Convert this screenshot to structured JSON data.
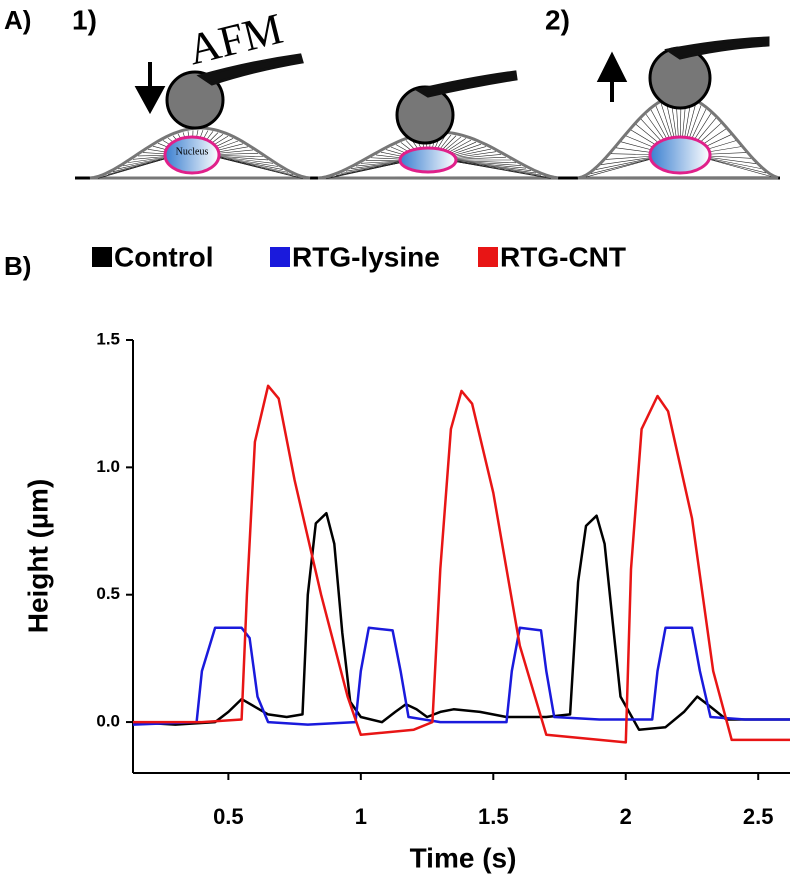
{
  "figure_a": {
    "label": "A)",
    "steps": [
      "1)",
      "2)"
    ],
    "probe_label": "AFM",
    "nucleus_label": "Nucleus"
  },
  "panel_b_label": "B)",
  "chart_data": {
    "type": "line",
    "xlabel": "Time (s)",
    "ylabel": "Height (µm)",
    "xlim": [
      0.14,
      2.62
    ],
    "ylim": [
      -0.2,
      1.5
    ],
    "xticks": [
      0.5,
      1,
      1.5,
      2,
      2.5
    ],
    "yticks": [
      {
        "value": 0,
        "label": "0.0"
      },
      0.5,
      {
        "value": 1,
        "label": "1.0"
      },
      1.5
    ],
    "grid": false,
    "legend": "top",
    "series": [
      {
        "name": "Control",
        "color": "#000000",
        "x": [
          0.14,
          0.3,
          0.45,
          0.5,
          0.55,
          0.6,
          0.65,
          0.72,
          0.78,
          0.8,
          0.83,
          0.87,
          0.9,
          0.93,
          0.96,
          1.0,
          1.08,
          1.13,
          1.17,
          1.21,
          1.25,
          1.3,
          1.35,
          1.45,
          1.55,
          1.7,
          1.79,
          1.82,
          1.85,
          1.89,
          1.92,
          1.95,
          1.98,
          2.05,
          2.15,
          2.22,
          2.27,
          2.32,
          2.38,
          2.5,
          2.62
        ],
        "values": [
          0.0,
          -0.01,
          0.0,
          0.04,
          0.09,
          0.06,
          0.03,
          0.02,
          0.03,
          0.5,
          0.78,
          0.82,
          0.7,
          0.35,
          0.08,
          0.02,
          0.0,
          0.04,
          0.07,
          0.05,
          0.02,
          0.04,
          0.05,
          0.04,
          0.02,
          0.02,
          0.03,
          0.55,
          0.77,
          0.81,
          0.7,
          0.4,
          0.1,
          -0.03,
          -0.02,
          0.04,
          0.1,
          0.06,
          0.01,
          0.01,
          0.01
        ]
      },
      {
        "name": "RTG-lysine",
        "color": "#1a1adc",
        "x": [
          0.14,
          0.38,
          0.4,
          0.45,
          0.55,
          0.58,
          0.61,
          0.65,
          0.8,
          0.98,
          1.0,
          1.03,
          1.12,
          1.15,
          1.18,
          1.3,
          1.55,
          1.57,
          1.6,
          1.68,
          1.7,
          1.73,
          1.9,
          2.1,
          2.12,
          2.15,
          2.25,
          2.28,
          2.32,
          2.45,
          2.62
        ],
        "values": [
          -0.01,
          0.0,
          0.2,
          0.37,
          0.37,
          0.33,
          0.1,
          0.0,
          -0.01,
          0.0,
          0.2,
          0.37,
          0.36,
          0.2,
          0.02,
          0.0,
          0.0,
          0.2,
          0.37,
          0.36,
          0.2,
          0.02,
          0.01,
          0.01,
          0.2,
          0.37,
          0.37,
          0.2,
          0.02,
          0.01,
          0.01
        ]
      },
      {
        "name": "RTG-CNT",
        "color": "#e81515",
        "x": [
          0.14,
          0.4,
          0.55,
          0.57,
          0.6,
          0.65,
          0.69,
          0.75,
          0.85,
          0.95,
          1.0,
          1.2,
          1.27,
          1.3,
          1.34,
          1.38,
          1.42,
          1.5,
          1.6,
          1.7,
          2.0,
          2.02,
          2.06,
          2.12,
          2.16,
          2.25,
          2.33,
          2.4,
          2.62
        ],
        "values": [
          0.0,
          0.0,
          0.01,
          0.5,
          1.1,
          1.32,
          1.27,
          0.95,
          0.5,
          0.1,
          -0.05,
          -0.03,
          0.0,
          0.6,
          1.15,
          1.3,
          1.25,
          0.9,
          0.3,
          -0.05,
          -0.08,
          0.6,
          1.15,
          1.28,
          1.22,
          0.8,
          0.2,
          -0.07,
          -0.07
        ]
      }
    ]
  }
}
